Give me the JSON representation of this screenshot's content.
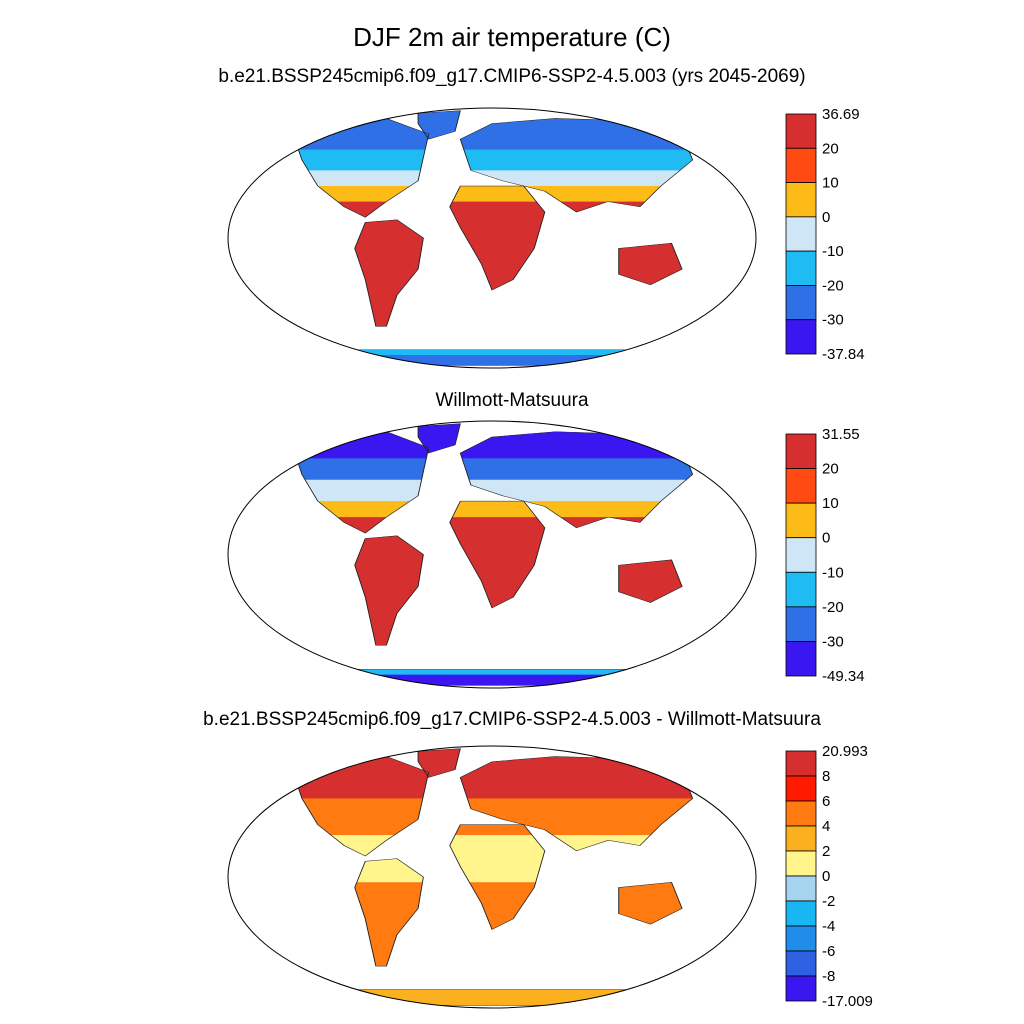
{
  "title": "DJF 2m air temperature (C)",
  "panels": [
    {
      "id": "model",
      "title": "b.e21.BSSP245cmip6.f09_g17.CMIP6-SSP2-4.5.003 (yrs 2045-2069)",
      "colorbar": {
        "labels": [
          "36.69",
          "20",
          "10",
          "0",
          "-10",
          "-20",
          "-30",
          "-37.84"
        ],
        "colors": [
          "#d62f2f",
          "#ff4a12",
          "#fdbb17",
          "#cfe6f7",
          "#1ebcf3",
          "#2f70e6",
          "#3a17f0"
        ]
      }
    },
    {
      "id": "obs",
      "title": "Willmott-Matsuura",
      "colorbar": {
        "labels": [
          "31.55",
          "20",
          "10",
          "0",
          "-10",
          "-20",
          "-30",
          "-49.34"
        ],
        "colors": [
          "#d62f2f",
          "#ff4a12",
          "#fdbb17",
          "#cfe6f7",
          "#1ebcf3",
          "#2f70e6",
          "#3a17f0"
        ]
      }
    },
    {
      "id": "diff",
      "title": "b.e21.BSSP245cmip6.f09_g17.CMIP6-SSP2-4.5.003 - Willmott-Matsuura",
      "colorbar": {
        "labels": [
          "20.993",
          "8",
          "6",
          "4",
          "2",
          "0",
          "-2",
          "-4",
          "-6",
          "-8",
          "-17.009"
        ],
        "colors": [
          "#d62f2f",
          "#ff1a00",
          "#ff7a10",
          "#fbb11f",
          "#fff58c",
          "#a6d3ee",
          "#18b6f2",
          "#1f8de9",
          "#2f62e2",
          "#3a17f0"
        ]
      }
    }
  ]
}
